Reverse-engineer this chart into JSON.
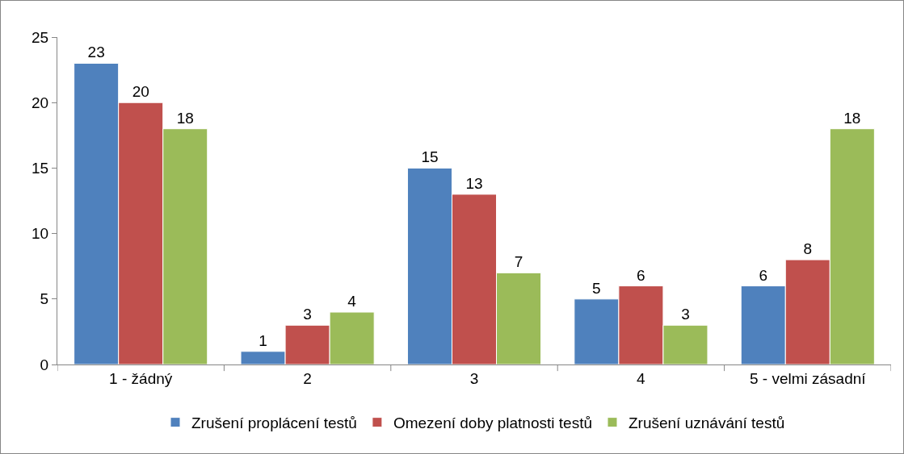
{
  "chart_data": {
    "type": "bar",
    "categories": [
      "1 - žádný",
      "2",
      "3",
      "4",
      "5 - velmi zásadní"
    ],
    "series": [
      {
        "name": "Zrušení proplácení testů",
        "color": "#4f81bd",
        "values": [
          23,
          1,
          15,
          5,
          6
        ]
      },
      {
        "name": "Omezení doby platnosti testů",
        "color": "#c0504d",
        "values": [
          20,
          3,
          13,
          6,
          8
        ]
      },
      {
        "name": "Zrušení uznávání testů",
        "color": "#9bbb59",
        "values": [
          18,
          4,
          7,
          3,
          18
        ]
      }
    ],
    "ylim": [
      0,
      25
    ],
    "yticks": [
      0,
      5,
      10,
      15,
      20,
      25
    ],
    "grid": false,
    "legend": "bottom",
    "data_labels": true
  }
}
